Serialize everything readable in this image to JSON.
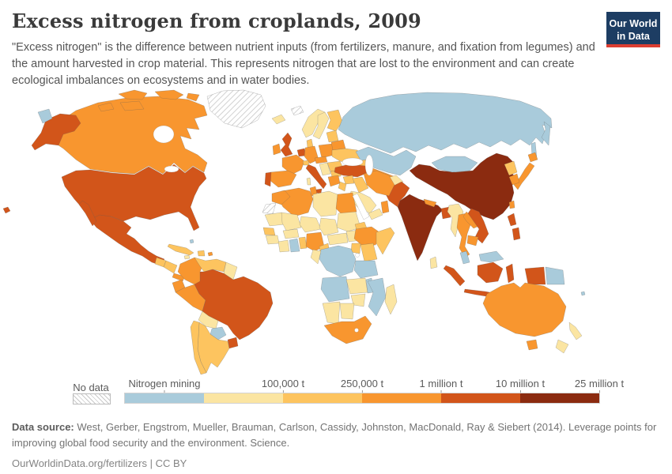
{
  "header": {
    "title": "Excess nitrogen from croplands, 2009",
    "subtitle": "\"Excess nitrogen\" is the difference between nutrient inputs (from fertilizers, manure, and fixation from legumes) and the amount harvested in crop material. This represents nitrogen that are lost to the environment and can create ecological imbalances on ecosystems and in water bodies.",
    "logo": {
      "line1": "Our World",
      "line2": "in Data",
      "bg": "#1d3d63",
      "accent": "#dc3e32"
    }
  },
  "legend": {
    "no_data": {
      "label": "No data"
    },
    "bins": [
      {
        "key": "mining",
        "label": "Nitrogen mining",
        "label_anchor": "center",
        "color": "#a9cbdb"
      },
      {
        "key": "b0",
        "color": "#fbe5a2"
      },
      {
        "key": "b1",
        "label": "100,000 t",
        "color": "#fdc45f"
      },
      {
        "key": "b2",
        "label": "250,000 t",
        "color": "#f8962f"
      },
      {
        "key": "b3",
        "label": "1 million t",
        "color": "#d2551a"
      },
      {
        "key": "b4",
        "label": "10 million t",
        "color": "#8b2b10"
      }
    ],
    "end_label": "25 million t"
  },
  "footer": {
    "source_label": "Data source:",
    "source_text": " West, Gerber, Engstrom, Mueller, Brauman, Carlson, Cassidy, Johnston, MacDonald, Ray & Siebert (2014). Leverage points for improving global food security and the environment. Science.",
    "link_text": "OurWorldinData.org/fertilizers",
    "separator": " | ",
    "license": "CC BY"
  },
  "chart_data": {
    "type": "choropleth",
    "title": "Excess nitrogen from croplands, 2009",
    "year": 2009,
    "unit": "tonnes of excess nitrogen",
    "legend_position": "bottom",
    "bin_labels": {
      "mining": "Nitrogen mining",
      "b0": "< 100,000 t",
      "b1": "100,000 t - 250,000 t",
      "b2": "250,000 t - 1 million t",
      "b3": "1 million t - 10 million t",
      "b4": "10 million t - 25 million t",
      "nodata": "No data"
    },
    "countries": {
      "greenland": "nodata",
      "svalbard": "nodata",
      "western-sahara": "nodata",
      "canada": "b2",
      "united-states": "b3",
      "mexico": "b3",
      "guatemala": "b1",
      "honduras-nicaragua": "b1",
      "costa-rica-panama": "b2",
      "cuba": "b1",
      "hispaniola": "b1",
      "jamaica": "b0",
      "puerto-rico": "b2",
      "bahamas": "mining",
      "colombia": "b2",
      "venezuela": "b1",
      "guyanas": "b0",
      "ecuador": "b2",
      "peru": "b2",
      "brazil": "b3",
      "bolivia": "b0",
      "paraguay": "mining",
      "uruguay": "b3",
      "argentina": "b1",
      "chile": "b1",
      "iceland": "b0",
      "norway": "b0",
      "sweden": "b0",
      "finland": "b1",
      "denmark": "b1",
      "united-kingdom": "b3",
      "ireland": "b2",
      "benelux": "b3",
      "germany": "b2",
      "france": "b2",
      "spain": "b2",
      "portugal": "b3",
      "italy": "b3",
      "sardinia": "b0",
      "switzerland": "b1",
      "austria-czechia": "b2",
      "poland": "b2",
      "baltics": "b1",
      "belarus": "b2",
      "ukraine": "b1",
      "romania": "b1",
      "balkans": "b0",
      "bulgaria": "b1",
      "greece": "b2",
      "caucasus": "b1",
      "russia": "mining",
      "kazakhstan": "mining",
      "central-asia": "b2",
      "mongolia": "mining",
      "turkey": "b3",
      "syria": "b1",
      "jordan-israel": "b1",
      "iraq": "b1",
      "iran": "b2",
      "saudi-arabia": "b0",
      "yemen": "b0",
      "oman": "b2",
      "afghanistan": "b0",
      "pakistan": "b3",
      "china": "b4",
      "india": "b4",
      "nepal": "b2",
      "bangladesh": "b3",
      "sri-lanka": "b0",
      "myanmar": "b0",
      "thailand": "b2",
      "laos": "b2",
      "vietnam": "b3",
      "cambodia": "b2",
      "malaysia": "mining",
      "japan": "b2",
      "north-korea": "b1",
      "south-korea": "b2",
      "taiwan": "b2",
      "philippines": "b3",
      "indonesia": "b3",
      "papua-new-guinea": "mining",
      "fiji": "mining",
      "australia": "b2",
      "new-zealand": "b0",
      "morocco": "b2",
      "algeria": "b2",
      "tunisia": "b2",
      "libya": "b0",
      "egypt": "b2",
      "mauritania": "b0",
      "mali": "b0",
      "niger": "b0",
      "chad": "b0",
      "sudan": "b0",
      "south-sudan": "b0",
      "eritrea": "b1",
      "senegal": "b1",
      "guinea": "b0",
      "ivory-coast": "b0",
      "ghana": "mining",
      "togo-benin": "b1",
      "burkina-faso": "b0",
      "nigeria": "b2",
      "cameroon": "b1",
      "central-african-republic": "b0",
      "ethiopia": "b2",
      "somalia": "b1",
      "kenya": "b1",
      "uganda": "b1",
      "dr-congo": "mining",
      "gabon-congo": "b0",
      "tanzania": "mining",
      "angola": "mining",
      "zambia": "b0",
      "malawi": "mining",
      "mozambique": "mining",
      "zimbabwe": "b0",
      "namibia": "b0",
      "botswana": "b0",
      "south-africa": "b2",
      "madagascar": "b0"
    }
  }
}
